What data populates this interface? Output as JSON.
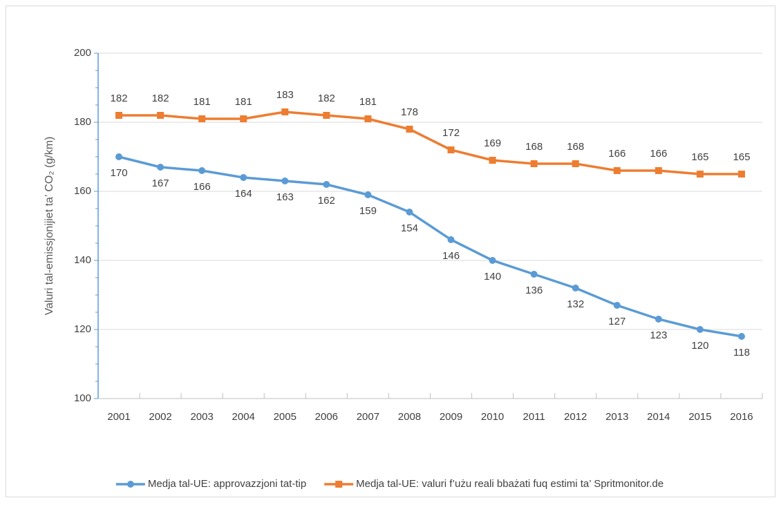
{
  "chart_data": {
    "type": "line",
    "ylabel": "Valuri tal-emissjonijiet ta’ CO₂ (g/km)",
    "categories": [
      "2001",
      "2002",
      "2003",
      "2004",
      "2005",
      "2006",
      "2007",
      "2008",
      "2009",
      "2010",
      "2011",
      "2012",
      "2013",
      "2014",
      "2015",
      "2016"
    ],
    "series": [
      {
        "name": "Medja tal-UE: approvazzjoni tat-tip",
        "color": "#5b9bd5",
        "marker": "circle",
        "values": [
          170,
          167,
          166,
          164,
          163,
          162,
          159,
          154,
          146,
          140,
          136,
          132,
          127,
          123,
          120,
          118
        ]
      },
      {
        "name": "Medja tal-UE: valuri f’użu reali bbażati fuq estimi ta’ Spritmonitor.de",
        "color": "#ed7d31",
        "marker": "square",
        "values": [
          182,
          182,
          181,
          181,
          183,
          182,
          181,
          178,
          172,
          169,
          168,
          168,
          166,
          166,
          165,
          165
        ]
      }
    ],
    "ylim": [
      100,
      200
    ],
    "yticks": [
      100,
      120,
      140,
      160,
      180,
      200
    ],
    "grid": true,
    "legend": "bottom"
  }
}
